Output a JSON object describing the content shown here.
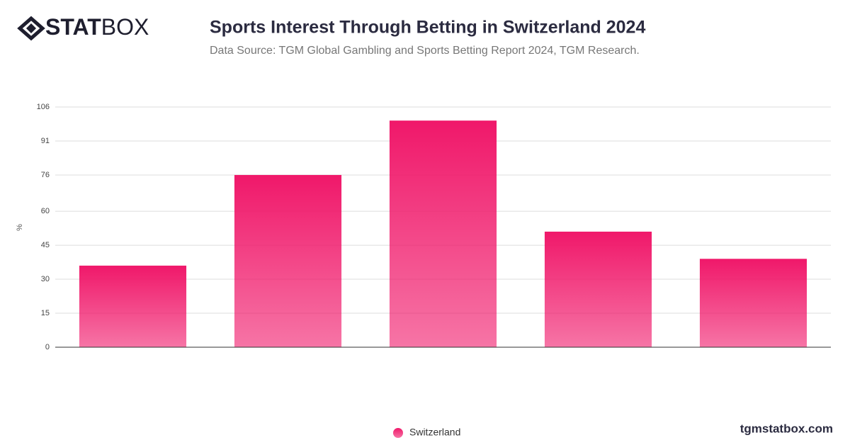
{
  "logo": {
    "bold": "STAT",
    "light": "BOX"
  },
  "footer": "tgmstatbox.com",
  "chart_data": {
    "type": "bar",
    "title": "Sports Interest Through Betting in Switzerland 2024",
    "subtitle": "Data Source: TGM Global Gambling and Sports Betting Report 2024, TGM Research.",
    "y_label": "%",
    "categories": [
      null,
      null,
      null,
      null,
      null
    ],
    "series": [
      {
        "name": "Switzerland",
        "color": "#f0186a",
        "values": [
          36,
          76,
          100,
          51,
          39
        ]
      }
    ],
    "ylim": [
      0,
      106
    ],
    "yticks": [
      0,
      15,
      30,
      45,
      60,
      76,
      91,
      106
    ],
    "grid": true,
    "legend": "bottom"
  }
}
